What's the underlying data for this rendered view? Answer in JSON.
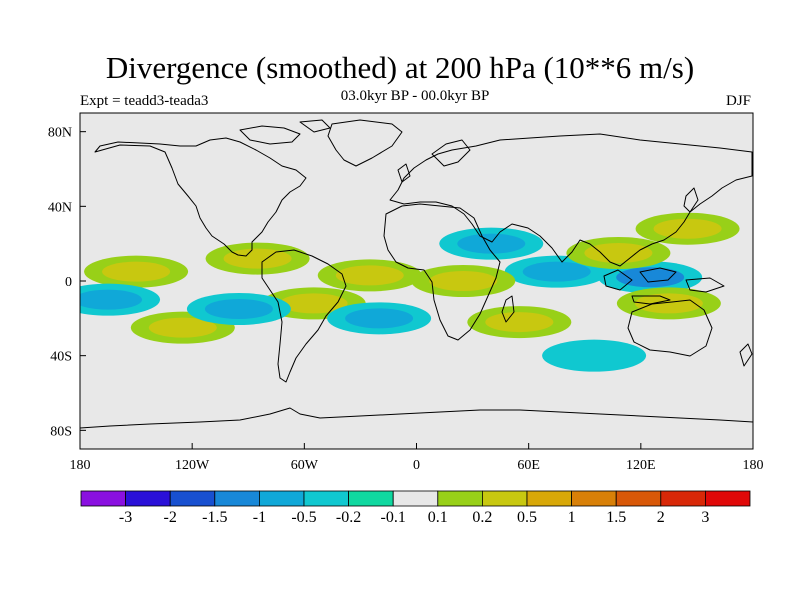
{
  "header": {
    "title": "Divergence (smoothed) at 200 hPa (10**6 m/s)",
    "subtitle": "03.0kyr BP - 00.0kyr BP",
    "experiment": "Expt = teadd3-teada3",
    "season": "DJF"
  },
  "axes": {
    "lat_labels": [
      "80N",
      "40N",
      "0",
      "40S",
      "80S"
    ],
    "lat_values": [
      80,
      40,
      0,
      -40,
      -80
    ],
    "lon_labels": [
      "180",
      "120W",
      "60W",
      "0",
      "60E",
      "120E",
      "180"
    ],
    "lon_values": [
      -180,
      -120,
      -60,
      0,
      60,
      120,
      180
    ],
    "lat_range": [
      -90,
      90
    ],
    "lon_range": [
      -180,
      180
    ]
  },
  "colorbar": {
    "labels": [
      "-3",
      "-2",
      "-1.5",
      "-1",
      "-0.5",
      "-0.2",
      "-0.1",
      "0.1",
      "0.2",
      "0.5",
      "1",
      "1.5",
      "2",
      "3"
    ],
    "colors": [
      "#8a10e0",
      "#2a10d8",
      "#1850d0",
      "#1888d8",
      "#10a8d8",
      "#10c8d0",
      "#10d8a0",
      "#e8e8e8",
      "#98d018",
      "#c8c810",
      "#d8a808",
      "#d88008",
      "#d85808",
      "#d82808",
      "#e00808"
    ]
  },
  "chart_data": {
    "type": "map-contour",
    "title": "Divergence (smoothed) at 200 hPa (10**6 m/s)",
    "field": "divergence difference, DJF",
    "anomaly_regions": [
      {
        "region": "Maritime Continent / Indonesia",
        "lon": 125,
        "lat": 2,
        "level": -1
      },
      {
        "region": "Indian Ocean equatorial",
        "lon": 75,
        "lat": 5,
        "level": -0.5
      },
      {
        "region": "West Pacific north (Japan/East Asia jet)",
        "lon": 145,
        "lat": 28,
        "level": 0.5
      },
      {
        "region": "South China / SE Asia",
        "lon": 108,
        "lat": 15,
        "level": 0.5
      },
      {
        "region": "Australia north",
        "lon": 135,
        "lat": -12,
        "level": 0.5
      },
      {
        "region": "Central Africa",
        "lon": 25,
        "lat": 0,
        "level": 0.5
      },
      {
        "region": "South Indian Ocean",
        "lon": 55,
        "lat": -22,
        "level": 0.5
      },
      {
        "region": "Northern Africa / Arabia",
        "lon": 40,
        "lat": 20,
        "level": -0.5
      },
      {
        "region": "Central Pacific",
        "lon": -150,
        "lat": 5,
        "level": 0.5
      },
      {
        "region": "Central America",
        "lon": -85,
        "lat": 12,
        "level": 0.5
      },
      {
        "region": "Equatorial Atlantic",
        "lon": -25,
        "lat": 3,
        "level": 0.5
      },
      {
        "region": "Amazon / South America",
        "lon": -55,
        "lat": -12,
        "level": 0.5
      },
      {
        "region": "South Pacific",
        "lon": -125,
        "lat": -25,
        "level": 0.5
      },
      {
        "region": "Tropical Atlantic south",
        "lon": -20,
        "lat": -20,
        "level": -0.5
      },
      {
        "region": "South Pacific east",
        "lon": -95,
        "lat": -15,
        "level": -0.5
      },
      {
        "region": "East Pacific equator",
        "lon": -165,
        "lat": -10,
        "level": -0.5
      },
      {
        "region": "Southern Ocean Indian sector",
        "lon": 95,
        "lat": -40,
        "level": -0.2
      }
    ]
  }
}
